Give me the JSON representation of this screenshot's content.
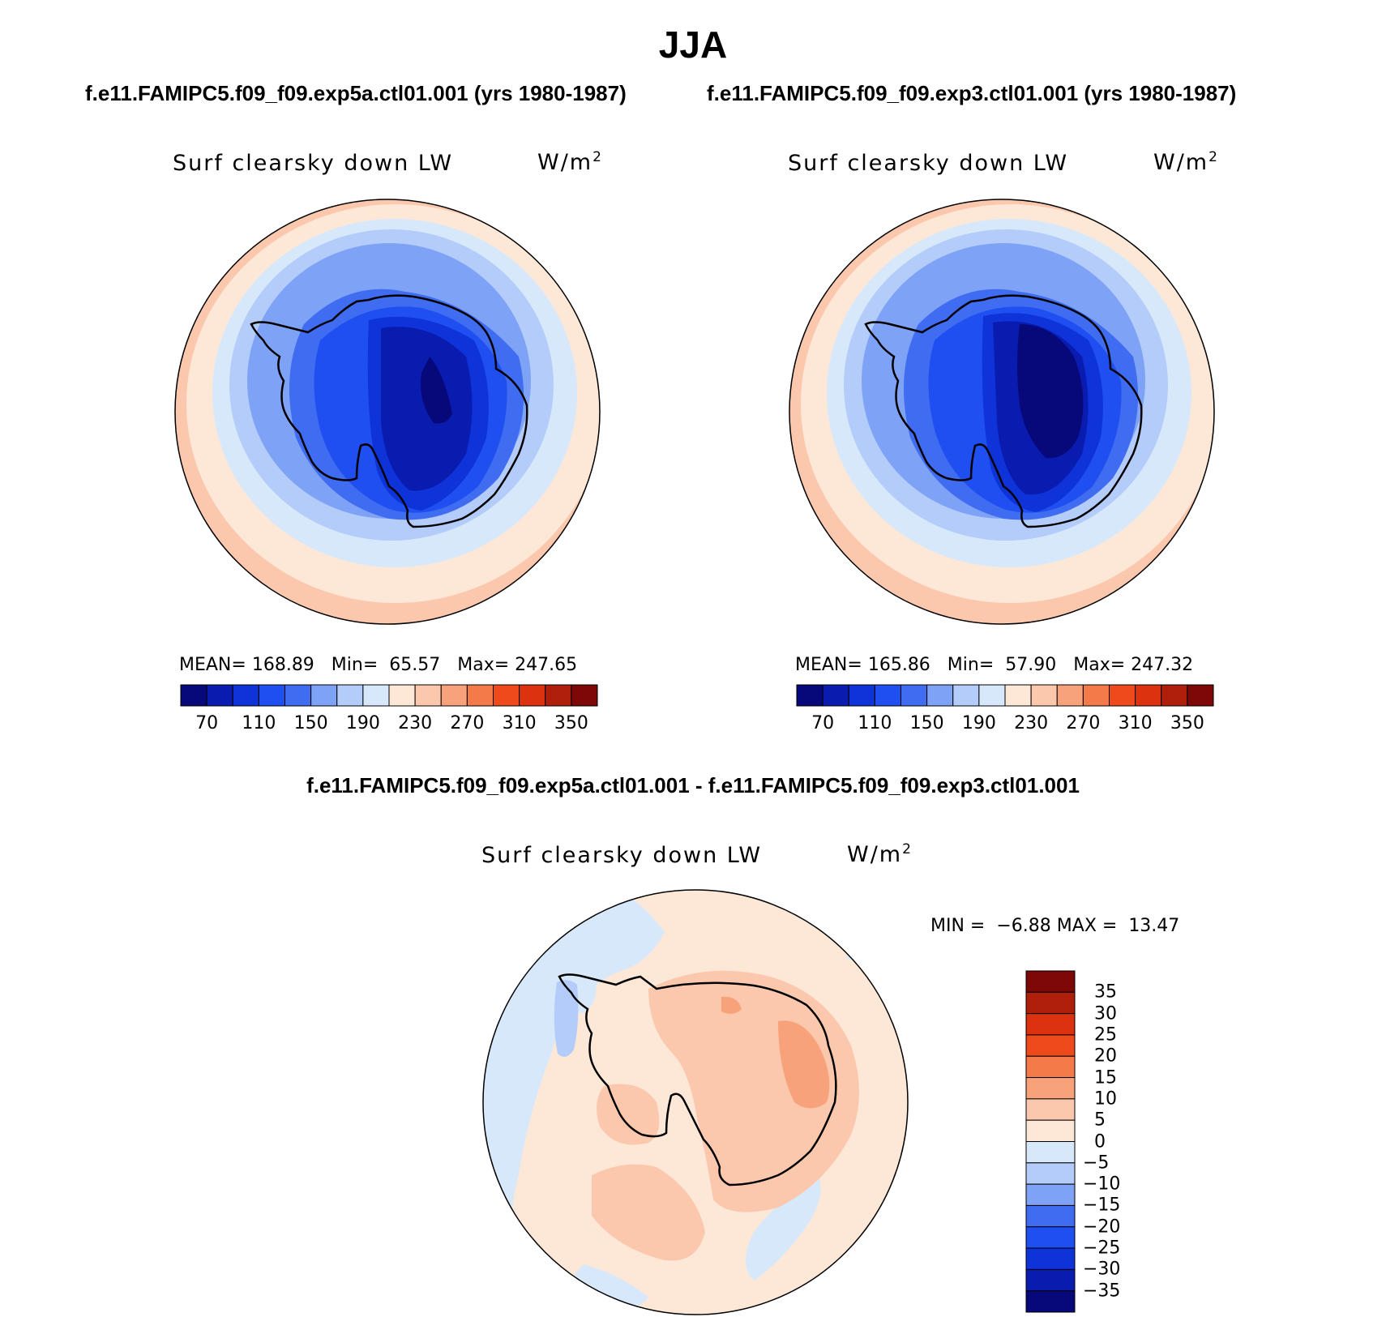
{
  "title": "JJA",
  "case1_title": "f.e11.FAMIPC5.f09_f09.exp5a.ctl01.001 (yrs 1980-1987)",
  "case2_title": "f.e11.FAMIPC5.f09_f09.exp3.ctl01.001 (yrs 1980-1987)",
  "diff_title": "f.e11.FAMIPC5.f09_f09.exp5a.ctl01.001 - f.e11.FAMIPC5.f09_f09.exp3.ctl01.001",
  "variable": "Surf clearsky down LW",
  "units_base": "W/m",
  "units_exp": "2",
  "panel1": {
    "mean_label": "MEAN=",
    "mean": "168.89",
    "min_label": "Min=",
    "min": "65.57",
    "max_label": "Max=",
    "max": "247.65"
  },
  "panel2": {
    "mean_label": "MEAN=",
    "mean": "165.86",
    "min_label": "Min=",
    "min": "57.90",
    "max_label": "Max=",
    "max": "247.32"
  },
  "diff_stats": {
    "min_label": "MIN =",
    "min": "−6.88",
    "max_label": "MAX =",
    "max": "13.47"
  },
  "colorbar_levels": [
    "70",
    "110",
    "150",
    "190",
    "230",
    "270",
    "310",
    "350"
  ],
  "colorbar_colors": [
    "#07097a",
    "#0a1cb0",
    "#0e33d8",
    "#1f4ff0",
    "#3f6cf0",
    "#7ea2f5",
    "#b3ccf9",
    "#d8e8fb",
    "#fde8d8",
    "#fbc8ae",
    "#f7a27a",
    "#f57a4a",
    "#ef4a1c",
    "#dc3210",
    "#b01f0c",
    "#7d0808"
  ],
  "diff_levels": [
    "35",
    "30",
    "25",
    "20",
    "15",
    "10",
    "5",
    "0",
    "−5",
    "−10",
    "−15",
    "−20",
    "−25",
    "−30",
    "−35"
  ],
  "diff_colors": [
    "#7d0808",
    "#b01f0c",
    "#dc3210",
    "#ef4a1c",
    "#f57a4a",
    "#f7a27a",
    "#fbc8ae",
    "#fde8d8",
    "#d8e8fb",
    "#b3ccf9",
    "#7ea2f5",
    "#3f6cf0",
    "#1f4ff0",
    "#0e33d8",
    "#0a1cb0",
    "#07097a"
  ]
}
